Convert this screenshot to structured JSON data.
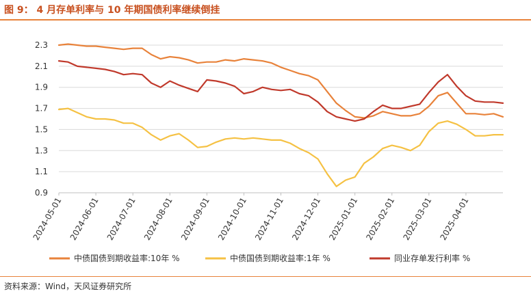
{
  "figure": {
    "title": "图 9： 4 月存单利率与 10 年期国债利率继续倒挂",
    "source": "资料来源：Wind，天风证券研究所"
  },
  "chart_data": {
    "type": "line",
    "title": "4 月存单利率与 10 年期国债利率继续倒挂",
    "xlabel": "",
    "ylabel": "",
    "ylim": [
      0.9,
      2.3
    ],
    "yticks": [
      "0.9",
      "1.1",
      "1.3",
      "1.5",
      "1.7",
      "1.9",
      "2.1",
      "2.3"
    ],
    "xticks": [
      "2024-05-01",
      "2024-06-01",
      "2024-07-01",
      "2024-08-01",
      "2024-09-01",
      "2024-10-01",
      "2024-11-01",
      "2024-12-01",
      "2025-01-01",
      "2025-02-01",
      "2025-03-01",
      "2025-04-01"
    ],
    "grid": "horizontal",
    "legend_position": "bottom",
    "x": [
      0,
      0.25,
      0.5,
      0.75,
      1,
      1.25,
      1.5,
      1.75,
      2,
      2.25,
      2.5,
      2.75,
      3,
      3.25,
      3.5,
      3.75,
      4,
      4.25,
      4.5,
      4.75,
      5,
      5.25,
      5.5,
      5.75,
      6,
      6.25,
      6.5,
      6.75,
      7,
      7.25,
      7.5,
      7.75,
      8,
      8.25,
      8.5,
      8.75,
      9,
      9.25,
      9.5,
      9.75,
      10,
      10.25,
      10.5,
      10.75,
      11,
      11.25,
      11.5,
      11.75,
      12
    ],
    "series": [
      {
        "name": "中债国债到期收益率:10年 %",
        "color": "#e8823a",
        "values": [
          2.3,
          2.31,
          2.3,
          2.29,
          2.29,
          2.28,
          2.27,
          2.26,
          2.27,
          2.27,
          2.21,
          2.17,
          2.19,
          2.18,
          2.16,
          2.13,
          2.14,
          2.14,
          2.16,
          2.15,
          2.17,
          2.16,
          2.15,
          2.13,
          2.09,
          2.06,
          2.03,
          2.01,
          1.97,
          1.86,
          1.75,
          1.68,
          1.62,
          1.61,
          1.63,
          1.67,
          1.65,
          1.63,
          1.63,
          1.65,
          1.72,
          1.82,
          1.85,
          1.75,
          1.65,
          1.65,
          1.64,
          1.65,
          1.62
        ]
      },
      {
        "name": "中债国债到期收益率:1年 %",
        "color": "#f5c143",
        "values": [
          1.69,
          1.7,
          1.66,
          1.62,
          1.6,
          1.6,
          1.59,
          1.56,
          1.56,
          1.52,
          1.45,
          1.4,
          1.44,
          1.46,
          1.4,
          1.33,
          1.34,
          1.38,
          1.41,
          1.42,
          1.41,
          1.42,
          1.41,
          1.4,
          1.4,
          1.37,
          1.32,
          1.28,
          1.22,
          1.08,
          0.96,
          1.02,
          1.05,
          1.18,
          1.24,
          1.32,
          1.35,
          1.33,
          1.3,
          1.35,
          1.48,
          1.56,
          1.58,
          1.55,
          1.5,
          1.44,
          1.44,
          1.45,
          1.45
        ]
      },
      {
        "name": "同业存单发行利率 %",
        "color": "#c0392b",
        "values": [
          2.15,
          2.14,
          2.1,
          2.09,
          2.08,
          2.07,
          2.05,
          2.02,
          2.03,
          2.02,
          1.94,
          1.9,
          1.96,
          1.92,
          1.89,
          1.86,
          1.97,
          1.96,
          1.94,
          1.91,
          1.84,
          1.86,
          1.9,
          1.88,
          1.87,
          1.88,
          1.84,
          1.82,
          1.76,
          1.67,
          1.62,
          1.6,
          1.58,
          1.6,
          1.67,
          1.73,
          1.7,
          1.7,
          1.72,
          1.74,
          1.85,
          1.95,
          2.02,
          1.91,
          1.82,
          1.77,
          1.76,
          1.76,
          1.75
        ]
      }
    ]
  }
}
